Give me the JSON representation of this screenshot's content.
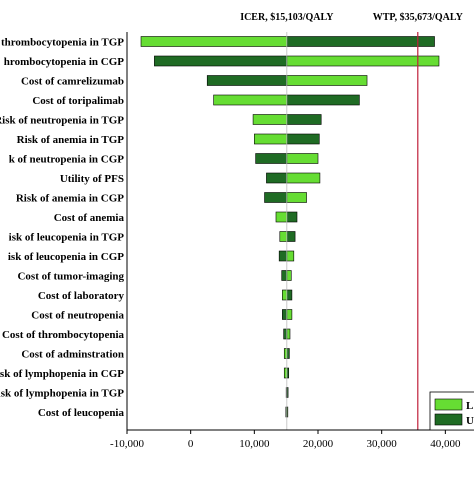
{
  "chart_data": {
    "type": "bar",
    "subtype": "tornado",
    "orientation": "horizontal",
    "base_value": 15103,
    "wtp_value": 35673,
    "annotations": {
      "icer": "ICER, $15,103/QALY",
      "wtp": "WTP, $35,673/QALY"
    },
    "categories": [
      "thrombocytopenia in TGP",
      "hrombocytopenia in CGP",
      "Cost of camrelizumab",
      "Cost of toripalimab",
      "Risk of neutropenia in TGP",
      "Risk of anemia in TGP",
      "k of neutropenia in CGP",
      "Utility of PFS",
      "Risk of anemia in CGP",
      "Cost of anemia",
      "isk of leucopenia in TGP",
      "isk of leucopenia in CGP",
      "Cost of tumor-imaging",
      "Cost of laboratory",
      "Cost of neutropenia",
      "Cost of thrombocytopenia",
      "Cost of adminstration",
      "isk of lymphopenia in CGP",
      "isk of lymphopenia in TGP",
      "Cost of leucopenia"
    ],
    "series": [
      {
        "name": "L",
        "color": "#66dd33",
        "values": [
          -7800,
          39000,
          27700,
          3600,
          9800,
          10000,
          20000,
          20300,
          18200,
          13400,
          14000,
          16200,
          15800,
          14400,
          15900,
          15600,
          14700,
          14700,
          15000,
          15250
        ]
      },
      {
        "name": "U",
        "color": "#1f6b24",
        "values": [
          38300,
          -5700,
          2600,
          26500,
          20500,
          20200,
          10200,
          11900,
          11600,
          16700,
          16400,
          13900,
          14300,
          15900,
          14400,
          14600,
          15500,
          15400,
          15300,
          14950
        ]
      }
    ],
    "x_ticks": [
      "-10,000",
      "0",
      "10,000",
      "20,000",
      "30,000",
      "40,000"
    ],
    "x_tick_values": [
      -10000,
      0,
      10000,
      20000,
      30000,
      40000
    ],
    "xlim": [
      -10000,
      44500
    ],
    "legend_position": "bottom-right",
    "colors": {
      "low_bar": "#66dd33",
      "high_bar": "#1f6b24",
      "wtp_line": "#c0203a",
      "icer_line": "#bbbbbb"
    }
  }
}
